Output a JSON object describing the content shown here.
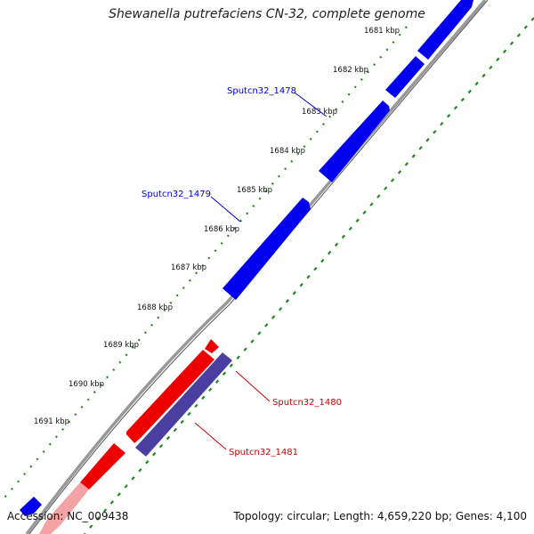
{
  "header": {
    "title": "Shewanella putrefaciens CN-32, complete genome"
  },
  "footer": {
    "accession": "Accession: NC_009438",
    "summary": "Topology: circular; Length: 4,659,220 bp; Genes: 4,100"
  },
  "colors": {
    "forward_gene": "#0000ee",
    "reverse_gene": "#ee0000",
    "reverse_gene_light": "#f2a0a0",
    "purple_gene": "#4a3fa0",
    "backbone": "#888888",
    "tick": "#1f8a1f",
    "forward_label": "#0000cc",
    "reverse_label": "#cc0000"
  },
  "scale_labels": [
    "1681 kbp",
    "1682 kbp",
    "1683 kbp",
    "1684 kbp",
    "1685 kbp",
    "1686 kbp",
    "1687 kbp",
    "1688 kbp",
    "1689 kbp",
    "1690 kbp",
    "1691 kbp"
  ],
  "gene_labels": [
    {
      "text": "Sputcn32_1478",
      "strand": "forward"
    },
    {
      "text": "Sputcn32_1479",
      "strand": "forward"
    },
    {
      "text": "Sputcn32_1480",
      "strand": "reverse"
    },
    {
      "text": "Sputcn32_1481",
      "strand": "reverse"
    }
  ]
}
